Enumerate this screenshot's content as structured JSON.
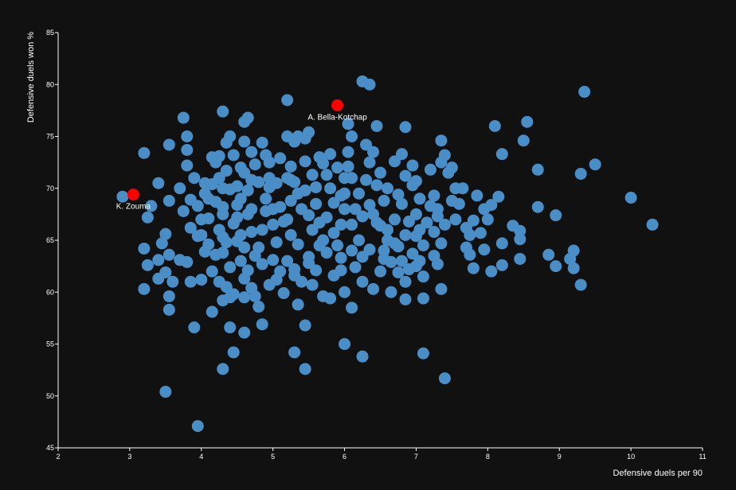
{
  "chart_data": {
    "type": "scatter",
    "xlabel": "Defensive duels per 90",
    "ylabel": "Defensive duels won %",
    "xlim": [
      2,
      11
    ],
    "ylim": [
      45,
      85
    ],
    "xticks": [
      2,
      3,
      4,
      5,
      6,
      7,
      8,
      9,
      10,
      11
    ],
    "yticks": [
      45,
      50,
      55,
      60,
      65,
      70,
      75,
      80,
      85
    ],
    "colors": {
      "points": "#4a8ec8",
      "highlight": "#ff0000",
      "background": "#111111",
      "axis": "#ffffff"
    },
    "highlights": [
      {
        "label": "A. Bella-Kotchap",
        "x": 5.9,
        "y": 78.0
      },
      {
        "label": "K. Zouma",
        "x": 3.05,
        "y": 69.4
      }
    ],
    "points": [
      [
        2.9,
        69.2
      ],
      [
        3.2,
        73.4
      ],
      [
        3.25,
        67.2
      ],
      [
        3.3,
        68.3
      ],
      [
        3.2,
        64.2
      ],
      [
        3.25,
        62.6
      ],
      [
        3.4,
        63.1
      ],
      [
        3.4,
        61.3
      ],
      [
        3.2,
        60.3
      ],
      [
        3.5,
        65.6
      ],
      [
        3.45,
        64.7
      ],
      [
        3.55,
        63.6
      ],
      [
        3.5,
        61.9
      ],
      [
        3.6,
        61.0
      ],
      [
        3.55,
        59.6
      ],
      [
        3.55,
        58.3
      ],
      [
        3.4,
        70.5
      ],
      [
        3.55,
        68.8
      ],
      [
        3.55,
        74.2
      ],
      [
        3.5,
        50.4
      ],
      [
        3.75,
        76.8
      ],
      [
        3.8,
        75.0
      ],
      [
        3.8,
        73.7
      ],
      [
        3.7,
        70.0
      ],
      [
        3.8,
        72.2
      ],
      [
        3.75,
        67.8
      ],
      [
        3.85,
        66.2
      ],
      [
        3.7,
        63.1
      ],
      [
        3.8,
        62.9
      ],
      [
        3.85,
        61.0
      ],
      [
        3.9,
        56.6
      ],
      [
        3.95,
        47.1
      ],
      [
        4.0,
        61.2
      ],
      [
        4.05,
        63.9
      ],
      [
        4.0,
        65.5
      ],
      [
        3.95,
        68.3
      ],
      [
        3.9,
        71.0
      ],
      [
        4.05,
        70.5
      ],
      [
        4.1,
        69.0
      ],
      [
        4.15,
        73.0
      ],
      [
        4.2,
        72.5
      ],
      [
        4.25,
        71.0
      ],
      [
        4.3,
        70.0
      ],
      [
        4.3,
        77.4
      ],
      [
        4.35,
        74.4
      ],
      [
        4.4,
        75.0
      ],
      [
        4.45,
        73.2
      ],
      [
        4.3,
        67.5
      ],
      [
        4.25,
        66.0
      ],
      [
        4.35,
        64.8
      ],
      [
        4.2,
        63.6
      ],
      [
        4.25,
        61.0
      ],
      [
        4.35,
        60.5
      ],
      [
        4.4,
        59.5
      ],
      [
        4.3,
        59.2
      ],
      [
        4.45,
        59.8
      ],
      [
        4.4,
        56.6
      ],
      [
        4.45,
        54.2
      ],
      [
        4.3,
        52.6
      ],
      [
        4.15,
        58.1
      ],
      [
        4.6,
        76.4
      ],
      [
        4.65,
        76.8
      ],
      [
        4.6,
        74.5
      ],
      [
        4.55,
        72.0
      ],
      [
        4.6,
        71.5
      ],
      [
        4.7,
        73.5
      ],
      [
        4.75,
        72.3
      ],
      [
        4.65,
        69.8
      ],
      [
        4.7,
        68.0
      ],
      [
        4.5,
        67.2
      ],
      [
        4.55,
        65.5
      ],
      [
        4.6,
        64.3
      ],
      [
        4.75,
        63.5
      ],
      [
        4.65,
        62.1
      ],
      [
        4.7,
        60.4
      ],
      [
        4.75,
        59.6
      ],
      [
        4.6,
        59.5
      ],
      [
        4.8,
        58.6
      ],
      [
        4.6,
        56.1
      ],
      [
        4.85,
        56.9
      ],
      [
        4.8,
        64.3
      ],
      [
        4.85,
        66.0
      ],
      [
        4.9,
        67.8
      ],
      [
        4.95,
        70.1
      ],
      [
        4.85,
        74.4
      ],
      [
        4.95,
        72.5
      ],
      [
        5.05,
        70.5
      ],
      [
        5.1,
        68.2
      ],
      [
        5.0,
        66.5
      ],
      [
        5.05,
        64.8
      ],
      [
        5.0,
        63.1
      ],
      [
        5.1,
        62.0
      ],
      [
        4.95,
        60.7
      ],
      [
        5.2,
        78.5
      ],
      [
        5.2,
        75.0
      ],
      [
        5.3,
        74.5
      ],
      [
        5.35,
        75.0
      ],
      [
        5.45,
        74.8
      ],
      [
        5.5,
        75.4
      ],
      [
        5.25,
        72.1
      ],
      [
        5.2,
        71.0
      ],
      [
        5.3,
        70.6
      ],
      [
        5.35,
        69.5
      ],
      [
        5.4,
        68.0
      ],
      [
        5.2,
        67.0
      ],
      [
        5.25,
        65.5
      ],
      [
        5.35,
        64.6
      ],
      [
        5.2,
        63.0
      ],
      [
        5.3,
        62.2
      ],
      [
        5.4,
        61.0
      ],
      [
        5.35,
        58.8
      ],
      [
        5.45,
        56.8
      ],
      [
        5.3,
        54.2
      ],
      [
        5.45,
        52.6
      ],
      [
        5.5,
        67.4
      ],
      [
        5.55,
        66.0
      ],
      [
        5.5,
        63.4
      ],
      [
        5.6,
        62.1
      ],
      [
        5.55,
        60.7
      ],
      [
        5.7,
        59.6
      ],
      [
        5.8,
        59.4
      ],
      [
        5.7,
        72.4
      ],
      [
        5.75,
        71.3
      ],
      [
        5.8,
        70.0
      ],
      [
        5.85,
        68.6
      ],
      [
        5.75,
        67.2
      ],
      [
        5.85,
        65.7
      ],
      [
        5.95,
        63.3
      ],
      [
        5.95,
        62.1
      ],
      [
        6.0,
        60.0
      ],
      [
        6.0,
        55.0
      ],
      [
        6.1,
        58.5
      ],
      [
        6.25,
        53.8
      ],
      [
        6.05,
        73.5
      ],
      [
        6.05,
        72.1
      ],
      [
        6.1,
        71.0
      ],
      [
        6.0,
        69.5
      ],
      [
        6.15,
        68.0
      ],
      [
        6.1,
        66.5
      ],
      [
        6.2,
        65.0
      ],
      [
        6.1,
        64.0
      ],
      [
        6.25,
        63.4
      ],
      [
        6.25,
        61.0
      ],
      [
        6.4,
        60.3
      ],
      [
        6.05,
        76.2
      ],
      [
        6.1,
        75.0
      ],
      [
        6.25,
        80.3
      ],
      [
        6.35,
        80.0
      ],
      [
        6.3,
        74.2
      ],
      [
        6.4,
        73.5
      ],
      [
        6.35,
        72.5
      ],
      [
        6.45,
        76.0
      ],
      [
        6.5,
        71.5
      ],
      [
        6.45,
        70.3
      ],
      [
        6.55,
        68.8
      ],
      [
        6.4,
        67.5
      ],
      [
        6.5,
        66.4
      ],
      [
        6.6,
        65.0
      ],
      [
        6.55,
        64.0
      ],
      [
        6.65,
        62.9
      ],
      [
        6.5,
        62.0
      ],
      [
        6.65,
        60.0
      ],
      [
        6.7,
        72.6
      ],
      [
        6.8,
        73.3
      ],
      [
        6.85,
        71.2
      ],
      [
        6.75,
        69.4
      ],
      [
        6.8,
        68.5
      ],
      [
        6.7,
        67.0
      ],
      [
        6.85,
        65.5
      ],
      [
        6.75,
        64.4
      ],
      [
        6.8,
        63.0
      ],
      [
        6.9,
        62.2
      ],
      [
        6.85,
        61.0
      ],
      [
        6.85,
        59.3
      ],
      [
        6.85,
        75.9
      ],
      [
        6.95,
        72.2
      ],
      [
        7.0,
        70.7
      ],
      [
        7.05,
        69.0
      ],
      [
        7.0,
        67.5
      ],
      [
        7.05,
        66.0
      ],
      [
        7.1,
        64.5
      ],
      [
        7.0,
        62.5
      ],
      [
        7.1,
        61.5
      ],
      [
        7.1,
        59.4
      ],
      [
        7.1,
        54.1
      ],
      [
        7.35,
        74.6
      ],
      [
        7.4,
        73.2
      ],
      [
        7.35,
        72.5
      ],
      [
        7.45,
        71.5
      ],
      [
        7.2,
        71.8
      ],
      [
        7.25,
        69.3
      ],
      [
        7.3,
        68.0
      ],
      [
        7.4,
        66.5
      ],
      [
        7.25,
        65.8
      ],
      [
        7.35,
        64.7
      ],
      [
        7.25,
        63.5
      ],
      [
        7.3,
        62.7
      ],
      [
        7.35,
        60.3
      ],
      [
        7.4,
        51.7
      ],
      [
        7.5,
        72.0
      ],
      [
        7.55,
        70.0
      ],
      [
        7.6,
        68.5
      ],
      [
        7.55,
        67.0
      ],
      [
        7.7,
        66.2
      ],
      [
        7.75,
        65.5
      ],
      [
        7.7,
        64.3
      ],
      [
        7.75,
        63.6
      ],
      [
        7.8,
        62.3
      ],
      [
        7.85,
        69.3
      ],
      [
        7.95,
        68.0
      ],
      [
        8.0,
        67.0
      ],
      [
        7.9,
        65.7
      ],
      [
        7.95,
        64.1
      ],
      [
        8.05,
        68.4
      ],
      [
        8.1,
        76.0
      ],
      [
        8.15,
        69.2
      ],
      [
        8.2,
        73.3
      ],
      [
        8.05,
        62.0
      ],
      [
        8.2,
        62.6
      ],
      [
        8.2,
        64.7
      ],
      [
        8.35,
        66.4
      ],
      [
        8.45,
        65.9
      ],
      [
        8.45,
        65.1
      ],
      [
        8.45,
        63.2
      ],
      [
        8.5,
        74.6
      ],
      [
        8.55,
        76.4
      ],
      [
        8.7,
        71.8
      ],
      [
        8.7,
        68.2
      ],
      [
        8.85,
        63.6
      ],
      [
        8.95,
        62.5
      ],
      [
        8.95,
        67.4
      ],
      [
        9.15,
        63.2
      ],
      [
        9.2,
        64.0
      ],
      [
        9.2,
        62.3
      ],
      [
        9.3,
        60.7
      ],
      [
        9.3,
        71.4
      ],
      [
        9.35,
        79.3
      ],
      [
        9.5,
        72.3
      ],
      [
        10.0,
        69.1
      ],
      [
        10.3,
        66.5
      ],
      [
        4.2,
        68.7
      ],
      [
        4.3,
        65.3
      ],
      [
        4.45,
        66.6
      ],
      [
        4.5,
        70.2
      ],
      [
        4.55,
        63.0
      ],
      [
        4.6,
        61.3
      ],
      [
        4.4,
        62.4
      ],
      [
        4.15,
        62.0
      ],
      [
        4.05,
        69.5
      ],
      [
        4.9,
        69.0
      ],
      [
        5.0,
        68.0
      ],
      [
        5.15,
        66.8
      ],
      [
        5.25,
        68.8
      ],
      [
        5.45,
        69.8
      ],
      [
        5.6,
        68.5
      ],
      [
        5.65,
        66.7
      ],
      [
        5.7,
        65.0
      ],
      [
        5.75,
        63.8
      ],
      [
        5.9,
        64.5
      ],
      [
        5.95,
        66.5
      ],
      [
        6.0,
        68.0
      ],
      [
        6.2,
        69.5
      ],
      [
        6.3,
        70.8
      ],
      [
        6.35,
        68.4
      ],
      [
        6.45,
        66.7
      ],
      [
        6.6,
        66.0
      ],
      [
        6.7,
        64.7
      ],
      [
        6.9,
        66.8
      ],
      [
        7.0,
        65.4
      ],
      [
        7.15,
        66.7
      ],
      [
        7.2,
        68.3
      ],
      [
        5.55,
        71.3
      ],
      [
        5.65,
        73.0
      ],
      [
        5.8,
        73.3
      ],
      [
        5.9,
        72.0
      ],
      [
        6.0,
        71.0
      ],
      [
        5.45,
        72.6
      ],
      [
        5.1,
        72.9
      ],
      [
        4.95,
        71.0
      ],
      [
        4.8,
        70.6
      ],
      [
        4.65,
        67.5
      ],
      [
        4.5,
        68.4
      ],
      [
        4.4,
        69.9
      ],
      [
        4.35,
        71.7
      ],
      [
        4.25,
        73.1
      ],
      [
        4.15,
        70.4
      ],
      [
        4.1,
        67.1
      ],
      [
        4.0,
        67.0
      ],
      [
        3.85,
        68.9
      ],
      [
        3.95,
        65.4
      ],
      [
        4.1,
        64.6
      ],
      [
        4.3,
        63.8
      ],
      [
        4.5,
        64.9
      ],
      [
        4.7,
        65.8
      ],
      [
        4.85,
        62.7
      ],
      [
        5.05,
        61.2
      ],
      [
        5.15,
        59.9
      ],
      [
        5.3,
        61.6
      ],
      [
        5.5,
        62.8
      ],
      [
        5.65,
        64.5
      ],
      [
        5.85,
        61.6
      ],
      [
        6.15,
        62.4
      ],
      [
        6.35,
        64.1
      ],
      [
        6.55,
        63.2
      ],
      [
        6.75,
        61.9
      ],
      [
        6.95,
        63.7
      ],
      [
        7.05,
        63.0
      ],
      [
        7.3,
        67.3
      ],
      [
        7.5,
        68.8
      ],
      [
        7.65,
        70.0
      ],
      [
        7.8,
        66.9
      ],
      [
        6.95,
        70.3
      ],
      [
        6.6,
        70.0
      ],
      [
        6.25,
        67.3
      ],
      [
        5.95,
        69.3
      ],
      [
        5.6,
        70.1
      ],
      [
        5.25,
        70.8
      ],
      [
        4.9,
        73.2
      ],
      [
        4.7,
        70.8
      ],
      [
        4.55,
        69.0
      ],
      [
        4.3,
        68.2
      ]
    ]
  }
}
